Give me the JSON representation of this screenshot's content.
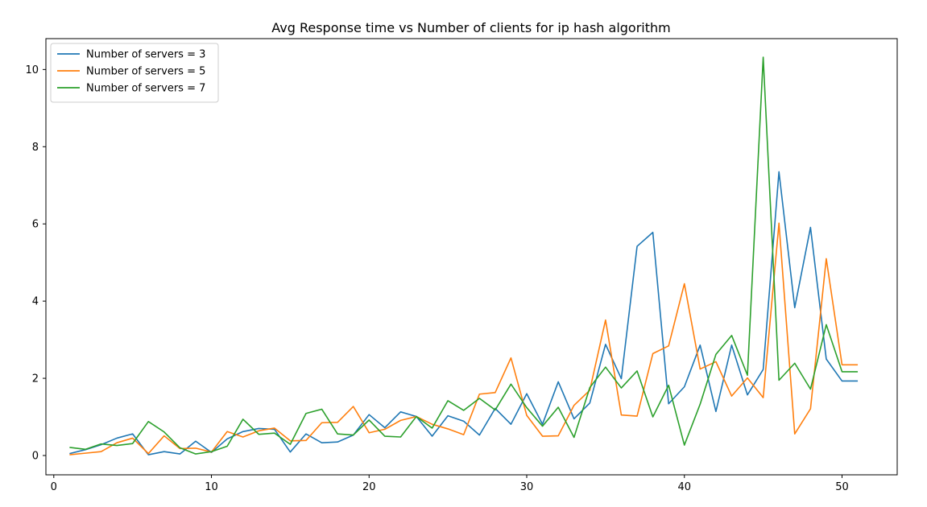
{
  "chart_data": {
    "type": "line",
    "title": "Avg Response time vs Number of clients for ip hash algorithm",
    "xlabel": "",
    "ylabel": "",
    "xlim": [
      -0.5,
      53.5
    ],
    "ylim": [
      -0.5,
      10.8
    ],
    "xticks": [
      0,
      10,
      20,
      30,
      40,
      50
    ],
    "yticks": [
      0,
      2,
      4,
      6,
      8,
      10
    ],
    "grid": false,
    "legend_position": "top-left",
    "x": [
      1,
      2,
      3,
      4,
      5,
      6,
      7,
      8,
      9,
      10,
      11,
      12,
      13,
      14,
      15,
      16,
      17,
      18,
      19,
      20,
      21,
      22,
      23,
      24,
      25,
      26,
      27,
      28,
      29,
      30,
      31,
      32,
      33,
      34,
      35,
      36,
      37,
      38,
      39,
      40,
      41,
      42,
      43,
      44,
      45,
      46,
      47,
      48,
      49,
      50,
      51
    ],
    "series": [
      {
        "name": "Number of servers = 3",
        "color": "#1f77b4",
        "values": [
          0.05,
          0.15,
          0.28,
          0.45,
          0.56,
          0.02,
          0.1,
          0.04,
          0.37,
          0.08,
          0.43,
          0.62,
          0.7,
          0.68,
          0.09,
          0.56,
          0.33,
          0.35,
          0.53,
          1.06,
          0.72,
          1.13,
          1.01,
          0.5,
          1.03,
          0.89,
          0.53,
          1.22,
          0.81,
          1.6,
          0.81,
          1.91,
          0.95,
          1.36,
          2.88,
          1.99,
          5.42,
          5.78,
          1.34,
          1.78,
          2.86,
          1.14,
          2.86,
          1.57,
          2.23,
          7.35,
          3.83,
          5.91,
          2.5,
          1.93,
          1.93
        ]
      },
      {
        "name": "Number of servers = 5",
        "color": "#ff7f0e",
        "values": [
          0.02,
          0.06,
          0.1,
          0.33,
          0.45,
          0.05,
          0.51,
          0.18,
          0.19,
          0.09,
          0.62,
          0.48,
          0.64,
          0.71,
          0.38,
          0.39,
          0.85,
          0.86,
          1.27,
          0.59,
          0.68,
          0.91,
          1.01,
          0.81,
          0.69,
          0.54,
          1.59,
          1.63,
          2.53,
          1.04,
          0.5,
          0.51,
          1.3,
          1.69,
          3.51,
          1.05,
          1.02,
          2.64,
          2.84,
          4.45,
          2.24,
          2.43,
          1.54,
          2.01,
          1.5,
          6.02,
          0.56,
          1.21,
          5.1,
          2.35,
          2.35
        ]
      },
      {
        "name": "Number of servers = 7",
        "color": "#2ca02c",
        "values": [
          0.21,
          0.16,
          0.3,
          0.26,
          0.31,
          0.88,
          0.61,
          0.2,
          0.04,
          0.1,
          0.24,
          0.94,
          0.55,
          0.58,
          0.29,
          1.09,
          1.2,
          0.56,
          0.53,
          0.92,
          0.5,
          0.48,
          1.01,
          0.71,
          1.42,
          1.17,
          1.48,
          1.18,
          1.85,
          1.24,
          0.76,
          1.25,
          0.47,
          1.76,
          2.29,
          1.75,
          2.19,
          1.0,
          1.82,
          0.27,
          1.33,
          2.62,
          3.11,
          2.08,
          10.32,
          1.95,
          2.39,
          1.72,
          3.39,
          2.17,
          2.17
        ]
      }
    ]
  }
}
